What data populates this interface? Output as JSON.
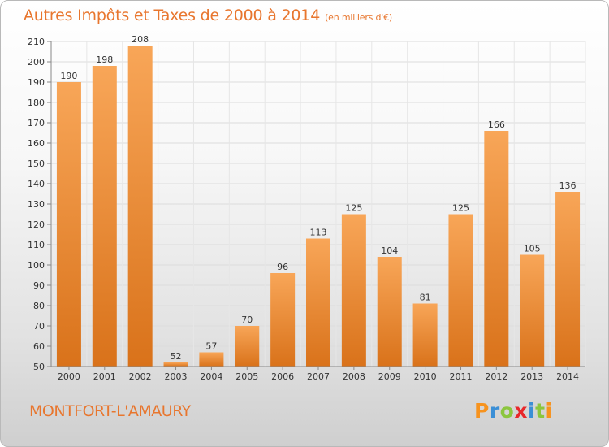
{
  "header": {
    "title": "Autres Impôts et Taxes de 2000 à 2014",
    "unit": "(en milliers d'€)"
  },
  "footer": {
    "place": "MONTFORT-L'AMAURY",
    "logo_text": "Proxiti",
    "logo_colors": [
      "#f7931e",
      "#3b8fd6",
      "#8cc63e",
      "#e8282b",
      "#3b8fd6",
      "#8cc63e",
      "#f7931e"
    ]
  },
  "colors": {
    "text_accent": "#e8762e",
    "bar_light": "#f8a658",
    "bar_dark": "#d9721a"
  },
  "chart_data": {
    "type": "bar",
    "title": "Autres Impôts et Taxes de 2000 à 2014",
    "subtitle": "(en milliers d'€)",
    "xlabel": "",
    "ylabel": "",
    "categories": [
      "2000",
      "2001",
      "2002",
      "2003",
      "2004",
      "2005",
      "2006",
      "2007",
      "2008",
      "2009",
      "2010",
      "2011",
      "2012",
      "2013",
      "2014"
    ],
    "values": [
      190,
      198,
      208,
      52,
      57,
      70,
      96,
      113,
      125,
      104,
      81,
      125,
      166,
      105,
      136
    ],
    "ylim": [
      50,
      210
    ],
    "yticks": [
      50,
      60,
      70,
      80,
      90,
      100,
      110,
      120,
      130,
      140,
      150,
      160,
      170,
      180,
      190,
      200,
      210
    ],
    "grid": true,
    "data_labels": true
  }
}
